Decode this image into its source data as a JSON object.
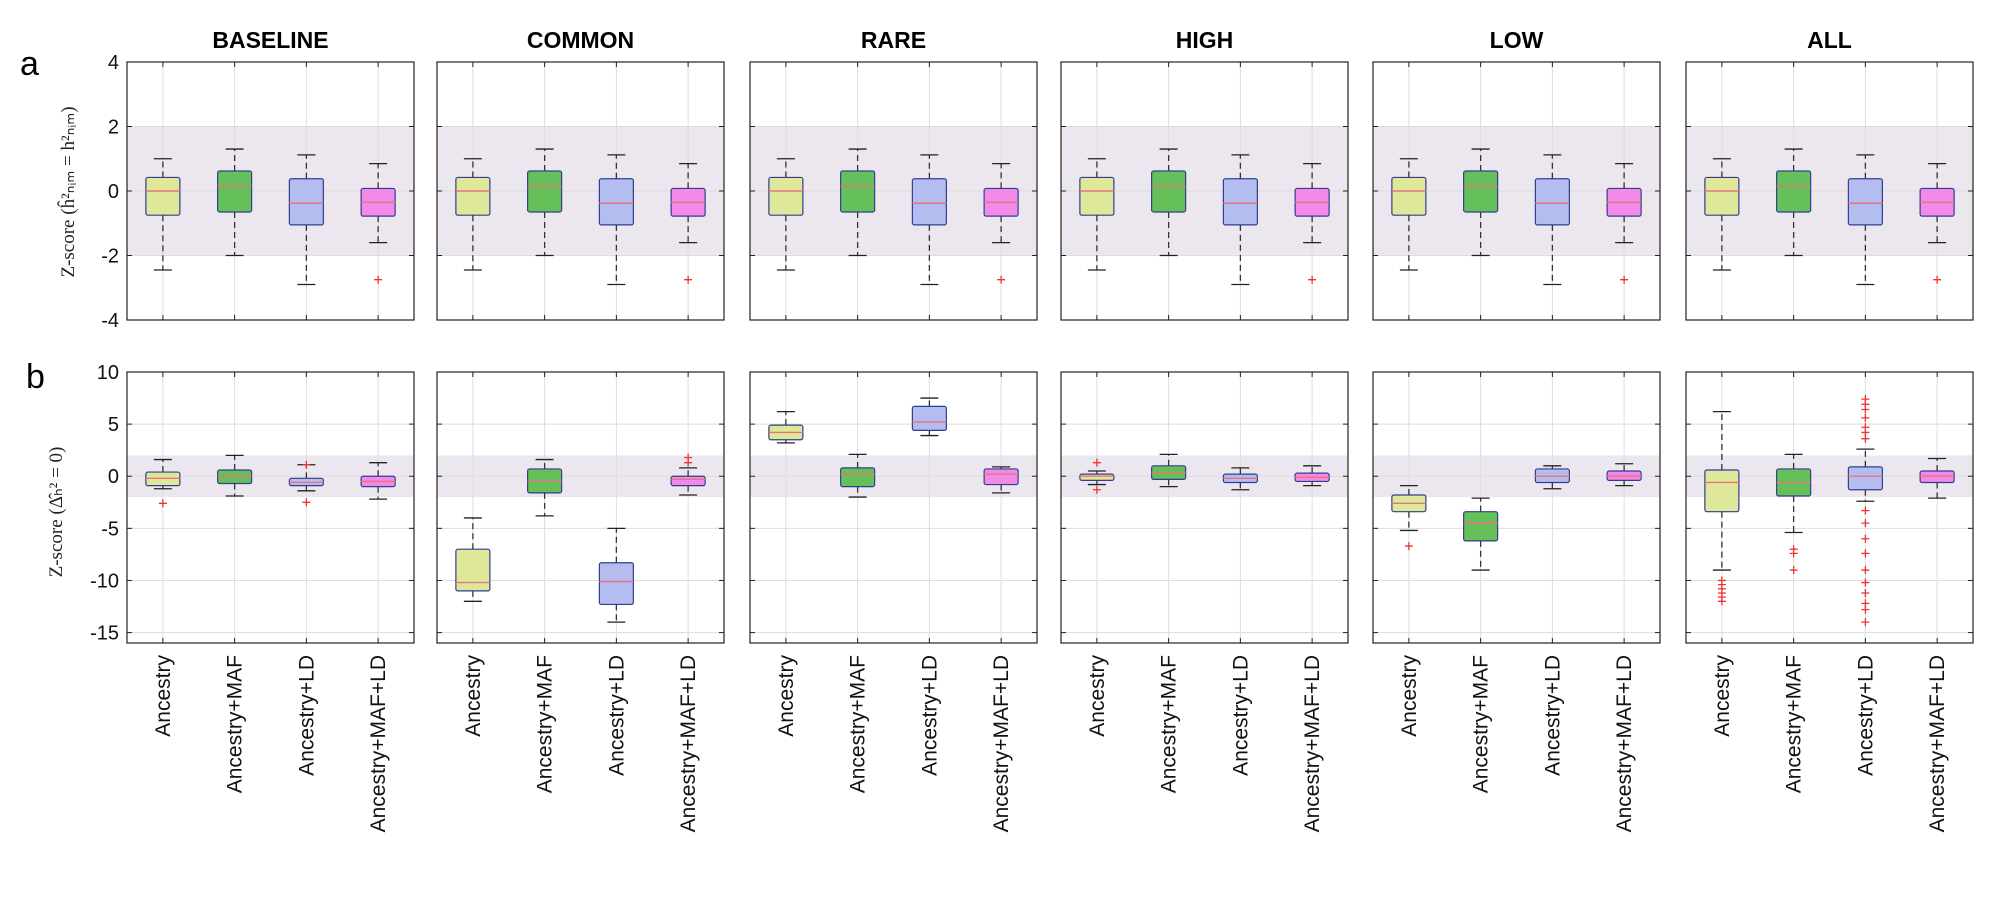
{
  "figure": {
    "panel_labels": [
      "a",
      "b"
    ],
    "row_ylabels": [
      "Z-score (ĥ²ₙᵢₘ = h²ₙᵢₘ)",
      "Z-score (Δ̂ₕ² = 0)"
    ]
  },
  "colors": {
    "Ancestry": "#dfe89a",
    "Ancestry+MAF": "#66c05a",
    "Ancestry+LD": "#b4bdf0",
    "Ancestry+MAF+LD": "#f28ae8",
    "median": "#e8757a",
    "outlier": "#ee3333",
    "band": "#ece6ee"
  },
  "chart_data": [
    {
      "type": "box",
      "row": "a",
      "facets": [
        "BASELINE",
        "COMMON",
        "RARE",
        "HIGH",
        "LOW",
        "ALL"
      ],
      "categories": [
        "Ancestry",
        "Ancestry+MAF",
        "Ancestry+LD",
        "Ancestry+MAF+LD"
      ],
      "ylim": [
        -4,
        4
      ],
      "yticks": [
        -4,
        -2,
        0,
        2,
        4
      ],
      "band": [
        -2,
        2
      ],
      "grid": true,
      "facet_boxes": {
        "BASELINE": [
          {
            "category": "Ancestry",
            "q1": -0.75,
            "median": 0,
            "q3": 0.42,
            "wlo": -2.45,
            "whi": 1.0,
            "outliers": []
          },
          {
            "category": "Ancestry+MAF",
            "q1": -0.65,
            "median": 0.15,
            "q3": 0.62,
            "wlo": -2.0,
            "whi": 1.3,
            "outliers": []
          },
          {
            "category": "Ancestry+LD",
            "q1": -1.05,
            "median": -0.38,
            "q3": 0.38,
            "wlo": -2.9,
            "whi": 1.12,
            "outliers": []
          },
          {
            "category": "Ancestry+MAF+LD",
            "q1": -0.78,
            "median": -0.35,
            "q3": 0.08,
            "wlo": -1.6,
            "whi": 0.85,
            "outliers": [
              -2.75
            ]
          }
        ],
        "COMMON": [
          {
            "category": "Ancestry",
            "q1": -0.75,
            "median": 0,
            "q3": 0.42,
            "wlo": -2.45,
            "whi": 1.0,
            "outliers": []
          },
          {
            "category": "Ancestry+MAF",
            "q1": -0.65,
            "median": 0.15,
            "q3": 0.62,
            "wlo": -2.0,
            "whi": 1.3,
            "outliers": []
          },
          {
            "category": "Ancestry+LD",
            "q1": -1.05,
            "median": -0.38,
            "q3": 0.38,
            "wlo": -2.9,
            "whi": 1.12,
            "outliers": []
          },
          {
            "category": "Ancestry+MAF+LD",
            "q1": -0.78,
            "median": -0.35,
            "q3": 0.08,
            "wlo": -1.6,
            "whi": 0.85,
            "outliers": [
              -2.75
            ]
          }
        ],
        "RARE": [
          {
            "category": "Ancestry",
            "q1": -0.75,
            "median": 0,
            "q3": 0.42,
            "wlo": -2.45,
            "whi": 1.0,
            "outliers": []
          },
          {
            "category": "Ancestry+MAF",
            "q1": -0.65,
            "median": 0.15,
            "q3": 0.62,
            "wlo": -2.0,
            "whi": 1.3,
            "outliers": []
          },
          {
            "category": "Ancestry+LD",
            "q1": -1.05,
            "median": -0.38,
            "q3": 0.38,
            "wlo": -2.9,
            "whi": 1.12,
            "outliers": []
          },
          {
            "category": "Ancestry+MAF+LD",
            "q1": -0.78,
            "median": -0.35,
            "q3": 0.08,
            "wlo": -1.6,
            "whi": 0.85,
            "outliers": [
              -2.75
            ]
          }
        ],
        "HIGH": [
          {
            "category": "Ancestry",
            "q1": -0.75,
            "median": 0,
            "q3": 0.42,
            "wlo": -2.45,
            "whi": 1.0,
            "outliers": []
          },
          {
            "category": "Ancestry+MAF",
            "q1": -0.65,
            "median": 0.15,
            "q3": 0.62,
            "wlo": -2.0,
            "whi": 1.3,
            "outliers": []
          },
          {
            "category": "Ancestry+LD",
            "q1": -1.05,
            "median": -0.38,
            "q3": 0.38,
            "wlo": -2.9,
            "whi": 1.12,
            "outliers": []
          },
          {
            "category": "Ancestry+MAF+LD",
            "q1": -0.78,
            "median": -0.35,
            "q3": 0.08,
            "wlo": -1.6,
            "whi": 0.85,
            "outliers": [
              -2.75
            ]
          }
        ],
        "LOW": [
          {
            "category": "Ancestry",
            "q1": -0.75,
            "median": 0,
            "q3": 0.42,
            "wlo": -2.45,
            "whi": 1.0,
            "outliers": []
          },
          {
            "category": "Ancestry+MAF",
            "q1": -0.65,
            "median": 0.15,
            "q3": 0.62,
            "wlo": -2.0,
            "whi": 1.3,
            "outliers": []
          },
          {
            "category": "Ancestry+LD",
            "q1": -1.05,
            "median": -0.38,
            "q3": 0.38,
            "wlo": -2.9,
            "whi": 1.12,
            "outliers": []
          },
          {
            "category": "Ancestry+MAF+LD",
            "q1": -0.78,
            "median": -0.35,
            "q3": 0.08,
            "wlo": -1.6,
            "whi": 0.85,
            "outliers": [
              -2.75
            ]
          }
        ],
        "ALL": [
          {
            "category": "Ancestry",
            "q1": -0.75,
            "median": 0,
            "q3": 0.42,
            "wlo": -2.45,
            "whi": 1.0,
            "outliers": []
          },
          {
            "category": "Ancestry+MAF",
            "q1": -0.65,
            "median": 0.15,
            "q3": 0.62,
            "wlo": -2.0,
            "whi": 1.3,
            "outliers": []
          },
          {
            "category": "Ancestry+LD",
            "q1": -1.05,
            "median": -0.38,
            "q3": 0.38,
            "wlo": -2.9,
            "whi": 1.12,
            "outliers": []
          },
          {
            "category": "Ancestry+MAF+LD",
            "q1": -0.78,
            "median": -0.35,
            "q3": 0.08,
            "wlo": -1.6,
            "whi": 0.85,
            "outliers": [
              -2.75
            ]
          }
        ]
      }
    },
    {
      "type": "box",
      "row": "b",
      "facets": [
        "BASELINE",
        "COMMON",
        "RARE",
        "HIGH",
        "LOW",
        "ALL"
      ],
      "categories": [
        "Ancestry",
        "Ancestry+MAF",
        "Ancestry+LD",
        "Ancestry+MAF+LD"
      ],
      "ylim": [
        -16,
        10
      ],
      "yticks": [
        -15,
        -10,
        -5,
        0,
        5,
        10
      ],
      "band": [
        -2,
        2
      ],
      "grid": true,
      "facet_boxes": {
        "BASELINE": [
          {
            "category": "Ancestry",
            "q1": -0.9,
            "median": -0.2,
            "q3": 0.4,
            "wlo": -1.2,
            "whi": 1.6,
            "outliers": [
              -2.6
            ]
          },
          {
            "category": "Ancestry+MAF",
            "q1": -0.7,
            "median": 0,
            "q3": 0.6,
            "wlo": -1.9,
            "whi": 2.0,
            "outliers": []
          },
          {
            "category": "Ancestry+LD",
            "q1": -0.9,
            "median": -0.6,
            "q3": -0.2,
            "wlo": -1.4,
            "whi": 1.1,
            "outliers": [
              -2.5,
              1.1
            ]
          },
          {
            "category": "Ancestry+MAF+LD",
            "q1": -1.0,
            "median": -0.5,
            "q3": 0,
            "wlo": -2.2,
            "whi": 1.3,
            "outliers": []
          }
        ],
        "COMMON": [
          {
            "category": "Ancestry",
            "q1": -11.0,
            "median": -10.2,
            "q3": -7.0,
            "wlo": -12.0,
            "whi": -4.0,
            "outliers": []
          },
          {
            "category": "Ancestry+MAF",
            "q1": -1.6,
            "median": -0.5,
            "q3": 0.7,
            "wlo": -3.8,
            "whi": 1.6,
            "outliers": []
          },
          {
            "category": "Ancestry+LD",
            "q1": -12.3,
            "median": -10.1,
            "q3": -8.3,
            "wlo": -14.0,
            "whi": -5.0,
            "outliers": []
          },
          {
            "category": "Ancestry+MAF+LD",
            "q1": -0.9,
            "median": -0.3,
            "q3": 0,
            "wlo": -1.8,
            "whi": 0.8,
            "outliers": [
              1.3,
              1.8
            ]
          }
        ],
        "RARE": [
          {
            "category": "Ancestry",
            "q1": 3.5,
            "median": 4.2,
            "q3": 4.9,
            "wlo": 3.2,
            "whi": 6.2,
            "outliers": []
          },
          {
            "category": "Ancestry+MAF",
            "q1": -1.0,
            "median": 0.2,
            "q3": 0.8,
            "wlo": -2.0,
            "whi": 2.1,
            "outliers": []
          },
          {
            "category": "Ancestry+LD",
            "q1": 4.4,
            "median": 5.2,
            "q3": 6.7,
            "wlo": 3.9,
            "whi": 7.5,
            "outliers": []
          },
          {
            "category": "Ancestry+MAF+LD",
            "q1": -0.8,
            "median": 0.2,
            "q3": 0.7,
            "wlo": -1.6,
            "whi": 0.9,
            "outliers": []
          }
        ],
        "HIGH": [
          {
            "category": "Ancestry",
            "q1": -0.4,
            "median": 0,
            "q3": 0.2,
            "wlo": -0.8,
            "whi": 0.5,
            "outliers": [
              -1.3,
              1.3
            ]
          },
          {
            "category": "Ancestry+MAF",
            "q1": -0.3,
            "median": 0.3,
            "q3": 1.0,
            "wlo": -1.0,
            "whi": 2.1,
            "outliers": []
          },
          {
            "category": "Ancestry+LD",
            "q1": -0.6,
            "median": -0.2,
            "q3": 0.2,
            "wlo": -1.3,
            "whi": 0.8,
            "outliers": []
          },
          {
            "category": "Ancestry+MAF+LD",
            "q1": -0.5,
            "median": -0.1,
            "q3": 0.3,
            "wlo": -0.9,
            "whi": 1.0,
            "outliers": []
          }
        ],
        "LOW": [
          {
            "category": "Ancestry",
            "q1": -3.4,
            "median": -2.6,
            "q3": -1.8,
            "wlo": -5.2,
            "whi": -0.9,
            "outliers": [
              -6.7
            ]
          },
          {
            "category": "Ancestry+MAF",
            "q1": -6.2,
            "median": -4.5,
            "q3": -3.4,
            "wlo": -9.0,
            "whi": -2.1,
            "outliers": []
          },
          {
            "category": "Ancestry+LD",
            "q1": -0.6,
            "median": 0,
            "q3": 0.7,
            "wlo": -1.2,
            "whi": 1.0,
            "outliers": []
          },
          {
            "category": "Ancestry+MAF+LD",
            "q1": -0.4,
            "median": 0,
            "q3": 0.5,
            "wlo": -0.9,
            "whi": 1.2,
            "outliers": []
          }
        ],
        "ALL": [
          {
            "category": "Ancestry",
            "q1": -3.4,
            "median": -0.6,
            "q3": 0.6,
            "wlo": -9.0,
            "whi": 6.2,
            "outliers": [
              -10.0,
              -10.4,
              -10.8,
              -11.2,
              -11.6,
              -12.0
            ]
          },
          {
            "category": "Ancestry+MAF",
            "q1": -1.9,
            "median": -0.6,
            "q3": 0.7,
            "wlo": -5.4,
            "whi": 2.1,
            "outliers": [
              -7.0,
              -7.4,
              -9.0
            ]
          },
          {
            "category": "Ancestry+LD",
            "q1": -1.3,
            "median": 0,
            "q3": 0.9,
            "wlo": -2.4,
            "whi": 2.6,
            "outliers": [
              7.4,
              6.9,
              6.4,
              5.6,
              4.7,
              4.2,
              3.6,
              -3.3,
              -4.5,
              -6.0,
              -7.4,
              -9.0,
              -10.2,
              -11.2,
              -12.2,
              -12.8,
              -14.0
            ]
          },
          {
            "category": "Ancestry+MAF+LD",
            "q1": -0.6,
            "median": 0,
            "q3": 0.5,
            "wlo": -2.1,
            "whi": 1.7,
            "outliers": []
          }
        ]
      }
    }
  ]
}
